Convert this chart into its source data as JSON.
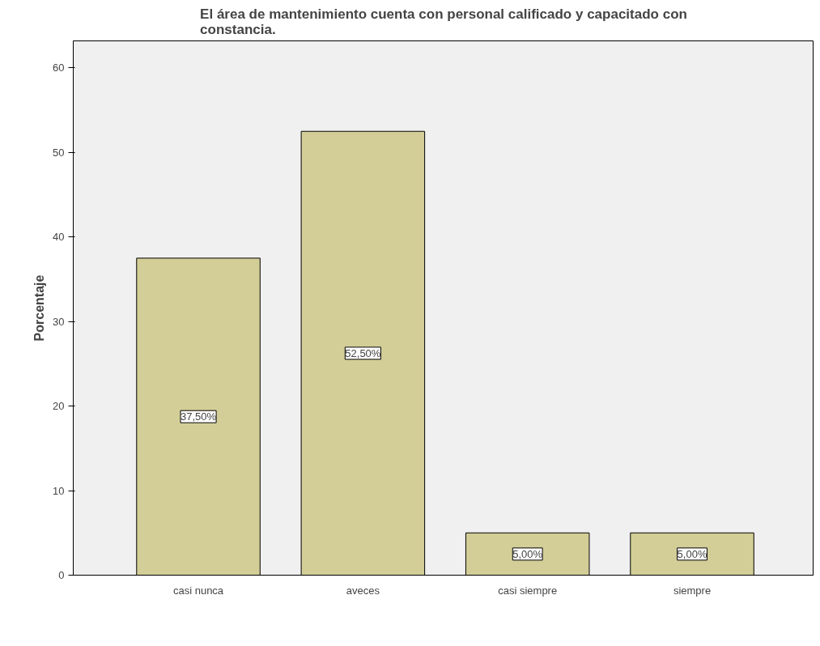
{
  "chart_data": {
    "type": "bar",
    "title": "El área de mantenimiento cuenta con personal calificado y capacitado con constancia.",
    "ylabel": "Porcentaje",
    "categories": [
      "casi nunca",
      "aveces",
      "casi siempre",
      "siempre"
    ],
    "values": [
      37.5,
      52.5,
      5.0,
      5.0
    ],
    "value_labels": [
      "37,50%",
      "52,50%",
      "5,00%",
      "5,00%"
    ],
    "color": "#d3ce97",
    "ylim": [
      0,
      63.2
    ],
    "yticks": [
      0,
      10,
      20,
      30,
      40,
      50,
      60
    ],
    "grid": false
  }
}
